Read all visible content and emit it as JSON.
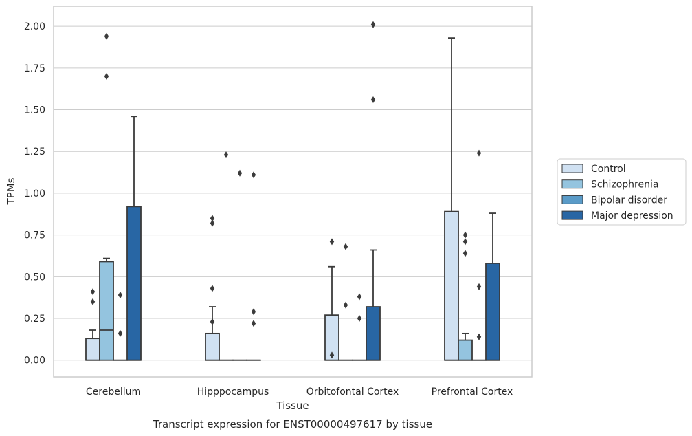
{
  "chart_data": {
    "type": "box",
    "caption": "Transcript expression for ENST00000497617 by tissue",
    "xlabel": "Tissue",
    "ylabel": "TPMs",
    "ylim": [
      -0.1,
      2.12
    ],
    "yticks": [
      0.0,
      0.25,
      0.5,
      0.75,
      1.0,
      1.25,
      1.5,
      1.75,
      2.0
    ],
    "ytick_labels": [
      "0.00",
      "0.25",
      "0.50",
      "0.75",
      "1.00",
      "1.25",
      "1.50",
      "1.75",
      "2.00"
    ],
    "grid": "horizontal",
    "legend_position": "right",
    "categories": [
      "Cerebellum",
      "Hipppocampus",
      "Orbitofontal Cortex",
      "Prefrontal Cortex"
    ],
    "series": [
      {
        "name": "Control",
        "color": "#d0e1f2",
        "boxes": [
          {
            "q1": 0.0,
            "median": 0.0,
            "q3": 0.13,
            "whisker_low": 0.0,
            "whisker_high": 0.18,
            "outliers": [
              0.41,
              0.35
            ]
          },
          {
            "q1": 0.0,
            "median": 0.0,
            "q3": 0.16,
            "whisker_low": 0.0,
            "whisker_high": 0.32,
            "outliers": [
              0.85,
              0.82,
              0.43,
              0.23
            ]
          },
          {
            "q1": 0.0,
            "median": 0.0,
            "q3": 0.27,
            "whisker_low": 0.0,
            "whisker_high": 0.56,
            "outliers": [
              0.71,
              0.03
            ]
          },
          {
            "q1": 0.0,
            "median": 0.0,
            "q3": 0.89,
            "whisker_low": 0.0,
            "whisker_high": 1.93,
            "outliers": []
          }
        ]
      },
      {
        "name": "Schizophrenia",
        "color": "#94c4df",
        "boxes": [
          {
            "q1": 0.0,
            "median": 0.18,
            "q3": 0.59,
            "whisker_low": 0.0,
            "whisker_high": 0.61,
            "outliers": [
              1.94,
              1.7
            ]
          },
          {
            "q1": 0.0,
            "median": 0.0,
            "q3": 0.0,
            "whisker_low": 0.0,
            "whisker_high": 0.0,
            "outliers": [
              1.23
            ]
          },
          {
            "q1": 0.0,
            "median": 0.0,
            "q3": 0.0,
            "whisker_low": 0.0,
            "whisker_high": 0.0,
            "outliers": [
              0.68,
              0.33
            ]
          },
          {
            "q1": 0.0,
            "median": 0.0,
            "q3": 0.12,
            "whisker_low": 0.0,
            "whisker_high": 0.16,
            "outliers": [
              0.75,
              0.71,
              0.64
            ]
          }
        ]
      },
      {
        "name": "Bipolar disorder",
        "color": "#5a9bc8",
        "boxes": [
          {
            "q1": 0.0,
            "median": 0.0,
            "q3": 0.0,
            "whisker_low": 0.0,
            "whisker_high": 0.0,
            "outliers": [
              0.39,
              0.16
            ]
          },
          {
            "q1": 0.0,
            "median": 0.0,
            "q3": 0.0,
            "whisker_low": 0.0,
            "whisker_high": 0.0,
            "outliers": [
              1.12
            ]
          },
          {
            "q1": 0.0,
            "median": 0.0,
            "q3": 0.0,
            "whisker_low": 0.0,
            "whisker_high": 0.0,
            "outliers": [
              0.38,
              0.25
            ]
          },
          {
            "q1": 0.0,
            "median": 0.0,
            "q3": 0.0,
            "whisker_low": 0.0,
            "whisker_high": 0.0,
            "outliers": [
              1.24,
              0.44,
              0.14
            ]
          }
        ]
      },
      {
        "name": "Major depression",
        "color": "#2866a4",
        "boxes": [
          {
            "q1": 0.0,
            "median": 0.0,
            "q3": 0.92,
            "whisker_low": 0.0,
            "whisker_high": 1.46,
            "outliers": []
          },
          {
            "q1": 0.0,
            "median": 0.0,
            "q3": 0.0,
            "whisker_low": 0.0,
            "whisker_high": 0.0,
            "outliers": [
              1.11,
              0.29,
              0.22
            ]
          },
          {
            "q1": 0.0,
            "median": 0.0,
            "q3": 0.32,
            "whisker_low": 0.0,
            "whisker_high": 0.66,
            "outliers": [
              2.01,
              1.56
            ]
          },
          {
            "q1": 0.0,
            "median": 0.0,
            "q3": 0.58,
            "whisker_low": 0.0,
            "whisker_high": 0.88,
            "outliers": []
          }
        ]
      }
    ]
  }
}
